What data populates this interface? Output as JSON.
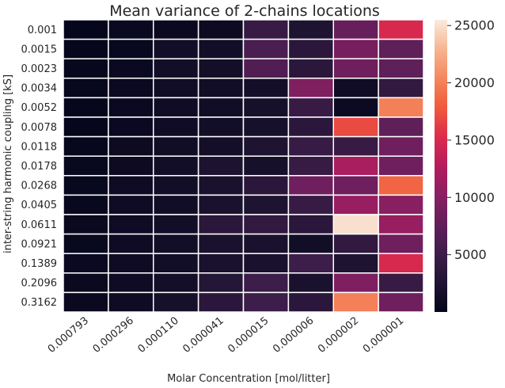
{
  "chart_data": {
    "type": "heatmap",
    "title": "Mean variance of 2-chains locations",
    "xlabel": "Molar Concentration [mol/litter]",
    "ylabel": "inter-string harmonic coupling [kS]",
    "x_categories": [
      "0.000793",
      "0.000296",
      "0.000110",
      "0.000041",
      "0.000015",
      "0.000006",
      "0.000002",
      "0.000001"
    ],
    "y_categories": [
      "0.001",
      "0.0015",
      "0.0023",
      "0.0034",
      "0.0052",
      "0.0078",
      "0.0118",
      "0.0178",
      "0.0268",
      "0.0405",
      "0.0611",
      "0.0921",
      "0.1389",
      "0.2096",
      "0.3162"
    ],
    "values": [
      [
        200,
        600,
        600,
        900,
        4500,
        2500,
        8000,
        15000
      ],
      [
        300,
        500,
        1500,
        1500,
        6000,
        3500,
        9000,
        7500
      ],
      [
        400,
        700,
        1500,
        1600,
        6500,
        3500,
        8500,
        7500
      ],
      [
        400,
        700,
        1300,
        1300,
        1600,
        9500,
        1200,
        4000
      ],
      [
        300,
        700,
        1200,
        1300,
        1800,
        4500,
        800,
        20000
      ],
      [
        300,
        700,
        1200,
        1500,
        1800,
        3500,
        17000,
        7500
      ],
      [
        400,
        900,
        1300,
        1600,
        2500,
        4500,
        4500,
        8500
      ],
      [
        500,
        900,
        1500,
        2400,
        1800,
        4500,
        12000,
        8500
      ],
      [
        500,
        1100,
        1500,
        2000,
        3500,
        8500,
        8500,
        18500
      ],
      [
        500,
        1100,
        1400,
        2000,
        2500,
        4500,
        11000,
        10000
      ],
      [
        600,
        1100,
        1500,
        3500,
        4000,
        3500,
        25000,
        11000
      ],
      [
        500,
        1100,
        1500,
        2000,
        2000,
        1500,
        4000,
        8500
      ],
      [
        700,
        1100,
        1500,
        2000,
        2000,
        5000,
        2500,
        15000
      ],
      [
        600,
        1100,
        1600,
        3000,
        5000,
        2000,
        9500,
        4500
      ],
      [
        600,
        1100,
        1800,
        3500,
        5000,
        3500,
        20000,
        8500
      ]
    ],
    "colorbar": {
      "colormap": "rocket",
      "range": [
        0,
        25500
      ],
      "ticks": [
        5000,
        10000,
        15000,
        20000,
        25000
      ]
    },
    "grid": false
  }
}
